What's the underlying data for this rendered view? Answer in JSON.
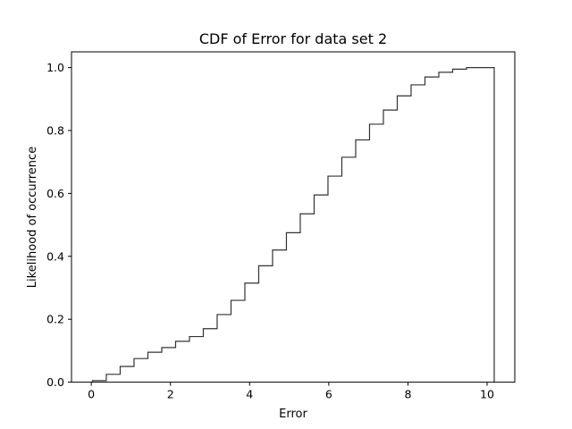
{
  "chart_data": {
    "type": "line",
    "subtype": "step-cdf-histogram",
    "title": "CDF of Error for data set 2",
    "xlabel": "Error",
    "ylabel": "Likelihood of occurrence",
    "xlim": [
      -0.5,
      10.7
    ],
    "ylim": [
      0.0,
      1.05
    ],
    "x_ticks": [
      0,
      2,
      4,
      6,
      8,
      10
    ],
    "x_tick_labels": [
      "0",
      "2",
      "4",
      "6",
      "8",
      "10"
    ],
    "y_ticks": [
      0.0,
      0.2,
      0.4,
      0.6,
      0.8,
      1.0
    ],
    "y_tick_labels": [
      "0.0",
      "0.2",
      "0.4",
      "0.6",
      "0.8",
      "1.0"
    ],
    "grid": false,
    "legend": "none",
    "line_color": "#333333",
    "series": [
      {
        "bin_edges": [
          0.03,
          0.38,
          0.73,
          1.08,
          1.43,
          1.78,
          2.13,
          2.48,
          2.83,
          3.18,
          3.53,
          3.88,
          4.23,
          4.58,
          4.93,
          5.28,
          5.63,
          5.98,
          6.33,
          6.68,
          7.03,
          7.38,
          7.73,
          8.08,
          8.43,
          8.78,
          9.13,
          9.48,
          9.83,
          10.18
        ],
        "cumulative": [
          0.005,
          0.025,
          0.05,
          0.075,
          0.095,
          0.11,
          0.13,
          0.145,
          0.17,
          0.215,
          0.26,
          0.315,
          0.37,
          0.42,
          0.475,
          0.535,
          0.595,
          0.655,
          0.715,
          0.77,
          0.82,
          0.865,
          0.91,
          0.945,
          0.97,
          0.985,
          0.995,
          1.0,
          1.0
        ]
      }
    ]
  }
}
